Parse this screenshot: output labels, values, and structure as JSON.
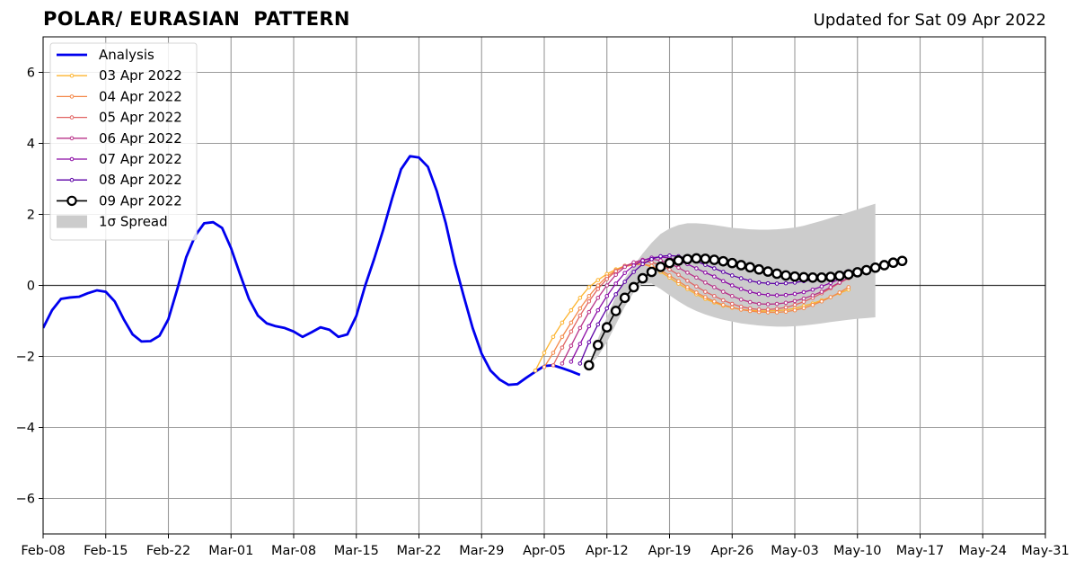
{
  "title": "POLAR/ EURASIAN  PATTERN",
  "updated": "Updated for Sat 09 Apr 2022",
  "chart_data": {
    "type": "line",
    "xlim": [
      "2022-02-08",
      "2022-05-31"
    ],
    "ylim": [
      -7,
      7
    ],
    "grid": true,
    "legend_position": "top-left",
    "x_ticks": [
      "2022-02-08",
      "2022-02-15",
      "2022-02-22",
      "2022-03-01",
      "2022-03-08",
      "2022-03-15",
      "2022-03-22",
      "2022-03-29",
      "2022-04-05",
      "2022-04-12",
      "2022-04-19",
      "2022-04-26",
      "2022-05-03",
      "2022-05-10",
      "2022-05-17",
      "2022-05-24",
      "2022-05-31"
    ],
    "x_tick_labels": [
      "Feb-08",
      "Feb-15",
      "Feb-22",
      "Mar-01",
      "Mar-08",
      "Mar-15",
      "Mar-22",
      "Mar-29",
      "Apr-05",
      "Apr-12",
      "Apr-19",
      "Apr-26",
      "May-03",
      "May-10",
      "May-17",
      "May-24",
      "May-31"
    ],
    "y_ticks": [
      -6,
      -4,
      -2,
      0,
      2,
      4,
      6
    ],
    "y_tick_labels": [
      "−6",
      "−4",
      "−2",
      "0",
      "2",
      "4",
      "6"
    ],
    "analysis": {
      "name": "Analysis",
      "color": "#0000ee",
      "start_date": "2022-02-08",
      "values": [
        -1.2,
        -0.7,
        -0.38,
        -0.34,
        -0.32,
        -0.22,
        -0.14,
        -0.18,
        -0.45,
        -0.95,
        -1.38,
        -1.58,
        -1.57,
        -1.42,
        -0.95,
        -0.1,
        0.8,
        1.4,
        1.75,
        1.78,
        1.62,
        1.05,
        0.32,
        -0.38,
        -0.85,
        -1.07,
        -1.15,
        -1.2,
        -1.3,
        -1.45,
        -1.32,
        -1.18,
        -1.25,
        -1.45,
        -1.38,
        -0.86,
        0.0,
        0.75,
        1.56,
        2.45,
        3.27,
        3.64,
        3.6,
        3.34,
        2.65,
        1.75,
        0.63,
        -0.3,
        -1.2,
        -1.92,
        -2.4,
        -2.65,
        -2.8,
        -2.78,
        -2.6,
        -2.43,
        -2.27,
        -2.25,
        -2.33,
        -2.42,
        -2.52
      ]
    },
    "spread": {
      "name": "1σ Spread",
      "color": "#cccccc",
      "start_date": "2022-04-10",
      "upper": [
        -2.25,
        -1.5,
        -0.9,
        -0.3,
        0.2,
        0.55,
        0.9,
        1.2,
        1.45,
        1.6,
        1.7,
        1.75,
        1.75,
        1.73,
        1.7,
        1.66,
        1.62,
        1.6,
        1.58,
        1.57,
        1.57,
        1.58,
        1.6,
        1.63,
        1.68,
        1.75,
        1.82,
        1.9,
        1.98,
        2.06,
        2.14,
        2.22,
        2.3
      ],
      "lower": [
        -2.25,
        -2.0,
        -1.6,
        -1.1,
        -0.6,
        -0.2,
        0.05,
        0.05,
        -0.1,
        -0.28,
        -0.45,
        -0.6,
        -0.72,
        -0.82,
        -0.9,
        -0.97,
        -1.02,
        -1.07,
        -1.1,
        -1.13,
        -1.15,
        -1.16,
        -1.16,
        -1.15,
        -1.13,
        -1.1,
        -1.07,
        -1.03,
        -1.0,
        -0.97,
        -0.94,
        -0.92,
        -0.9
      ]
    },
    "forecasts": [
      {
        "name": "03 Apr 2022",
        "color": "#fdb42f",
        "start_date": "2022-04-04",
        "values": [
          -2.4,
          -1.9,
          -1.45,
          -1.05,
          -0.7,
          -0.35,
          -0.05,
          0.15,
          0.32,
          0.45,
          0.55,
          0.6,
          0.6,
          0.52,
          0.38,
          0.22,
          0.05,
          -0.1,
          -0.25,
          -0.38,
          -0.48,
          -0.57,
          -0.63,
          -0.68,
          -0.7,
          -0.72,
          -0.72,
          -0.71,
          -0.69,
          -0.65,
          -0.58,
          -0.51,
          -0.42,
          -0.33,
          -0.22,
          -0.12
        ]
      },
      {
        "name": "04 Apr 2022",
        "color": "#f48849",
        "start_date": "2022-04-05",
        "values": [
          -2.3,
          -1.9,
          -1.45,
          -1.05,
          -0.65,
          -0.3,
          0.0,
          0.25,
          0.42,
          0.53,
          0.58,
          0.6,
          0.55,
          0.43,
          0.28,
          0.12,
          -0.05,
          -0.2,
          -0.33,
          -0.45,
          -0.55,
          -0.62,
          -0.68,
          -0.72,
          -0.75,
          -0.76,
          -0.76,
          -0.74,
          -0.7,
          -0.64,
          -0.55,
          -0.45,
          -0.33,
          -0.2,
          -0.05
        ]
      },
      {
        "name": "05 Apr 2022",
        "color": "#e16462",
        "start_date": "2022-04-06",
        "values": [
          -2.25,
          -1.75,
          -1.3,
          -0.85,
          -0.45,
          -0.1,
          0.18,
          0.4,
          0.55,
          0.63,
          0.67,
          0.65,
          0.57,
          0.45,
          0.3,
          0.13,
          -0.03,
          -0.18,
          -0.3,
          -0.42,
          -0.52,
          -0.6,
          -0.65,
          -0.68,
          -0.68,
          -0.66,
          -0.62,
          -0.55,
          -0.46,
          -0.35,
          -0.22,
          -0.08,
          0.07,
          0.2
        ]
      },
      {
        "name": "06 Apr 2022",
        "color": "#b83289",
        "start_date": "2022-04-07",
        "values": [
          -2.2,
          -1.7,
          -1.2,
          -0.75,
          -0.35,
          0.0,
          0.3,
          0.52,
          0.65,
          0.72,
          0.74,
          0.7,
          0.62,
          0.5,
          0.36,
          0.22,
          0.08,
          -0.05,
          -0.18,
          -0.3,
          -0.4,
          -0.47,
          -0.52,
          -0.53,
          -0.52,
          -0.49,
          -0.44,
          -0.37,
          -0.28,
          -0.18,
          -0.05,
          0.08,
          0.22
        ]
      },
      {
        "name": "07 Apr 2022",
        "color": "#8b0aa5",
        "start_date": "2022-04-08",
        "values": [
          -2.15,
          -1.65,
          -1.15,
          -0.7,
          -0.3,
          0.05,
          0.35,
          0.56,
          0.7,
          0.78,
          0.8,
          0.77,
          0.7,
          0.6,
          0.48,
          0.36,
          0.25,
          0.12,
          0.0,
          -0.1,
          -0.18,
          -0.24,
          -0.27,
          -0.28,
          -0.27,
          -0.24,
          -0.19,
          -0.12,
          -0.03,
          0.07,
          0.18,
          0.3
        ]
      },
      {
        "name": "08 Apr 2022",
        "color": "#5c01a6",
        "start_date": "2022-04-09",
        "values": [
          -2.2,
          -1.6,
          -1.1,
          -0.65,
          -0.25,
          0.1,
          0.38,
          0.6,
          0.74,
          0.82,
          0.84,
          0.82,
          0.76,
          0.68,
          0.58,
          0.48,
          0.38,
          0.28,
          0.2,
          0.13,
          0.08,
          0.06,
          0.05,
          0.06,
          0.08,
          0.12,
          0.16,
          0.21,
          0.27,
          0.33,
          0.4
        ]
      },
      {
        "name": "09 Apr 2022",
        "color": "#000000",
        "start_date": "2022-04-10",
        "values": [
          -2.25,
          -1.68,
          -1.18,
          -0.72,
          -0.35,
          -0.05,
          0.2,
          0.38,
          0.52,
          0.63,
          0.7,
          0.74,
          0.76,
          0.75,
          0.72,
          0.68,
          0.63,
          0.57,
          0.51,
          0.45,
          0.39,
          0.33,
          0.28,
          0.25,
          0.23,
          0.22,
          0.22,
          0.24,
          0.27,
          0.31,
          0.37,
          0.43,
          0.5,
          0.57,
          0.64,
          0.69
        ]
      }
    ]
  }
}
